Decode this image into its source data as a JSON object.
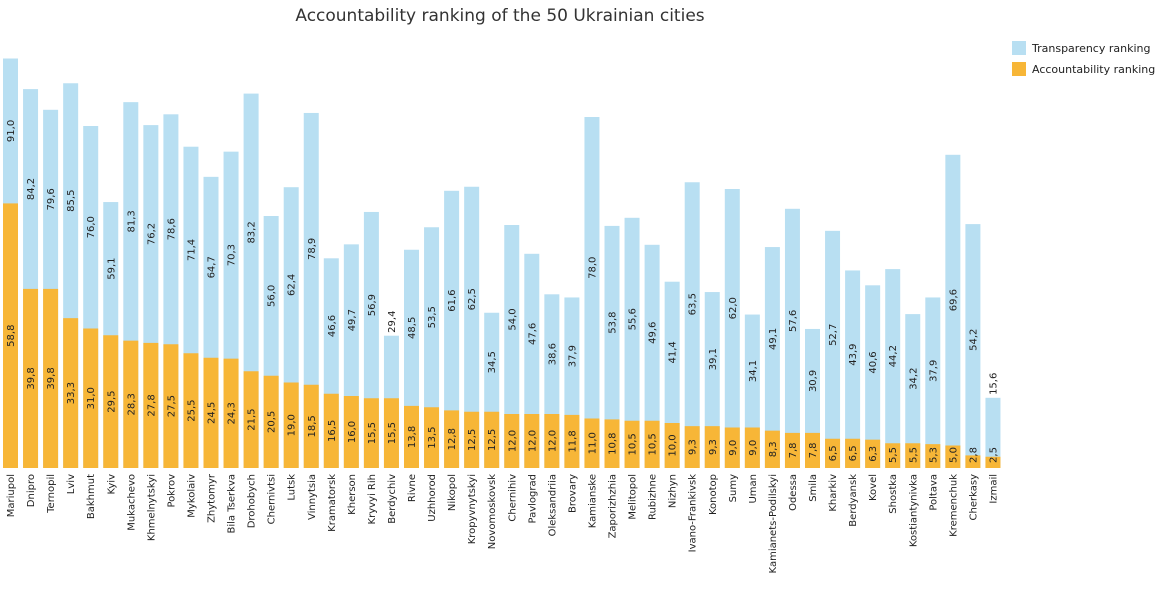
{
  "chart_data": {
    "type": "bar",
    "title": "Accountability ranking of the 50 Ukrainian cities",
    "legend_position": "top-right",
    "grid": false,
    "ylim": [
      0,
      100
    ],
    "colors": {
      "transparency": "#b8dff2",
      "accountability": "#f7b637"
    },
    "series": [
      {
        "name": "Transparency ranking",
        "key": "transparency",
        "values": [
          91.0,
          84.2,
          79.6,
          85.5,
          76.0,
          59.1,
          81.3,
          76.2,
          78.6,
          71.4,
          64.7,
          70.3,
          83.2,
          56.0,
          62.4,
          78.9,
          46.6,
          49.7,
          56.9,
          29.4,
          48.5,
          53.5,
          61.6,
          62.5,
          34.5,
          54.0,
          47.6,
          38.6,
          37.9,
          78.0,
          53.8,
          55.6,
          49.6,
          41.4,
          63.5,
          39.1,
          62.0,
          34.1,
          49.1,
          57.6,
          30.9,
          52.7,
          43.9,
          40.6,
          44.2,
          34.2,
          37.9,
          69.6,
          54.2,
          15.6
        ],
        "labels": [
          "91,0",
          "84,2",
          "79,6",
          "85,5",
          "76,0",
          "59,1",
          "81,3",
          "76,2",
          "78,6",
          "71,4",
          "64,7",
          "70,3",
          "83,2",
          "56,0",
          "62,4",
          "78,9",
          "46,6",
          "49,7",
          "56,9",
          "29,4",
          "48,5",
          "53,5",
          "61,6",
          "62,5",
          "34,5",
          "54,0",
          "47,6",
          "38,6",
          "37,9",
          "78,0",
          "53,8",
          "55,6",
          "49,6",
          "41,4",
          "63,5",
          "39,1",
          "62,0",
          "34,1",
          "49,1",
          "57,6",
          "30,9",
          "52,7",
          "43,9",
          "40,6",
          "44,2",
          "34,2",
          "37,9",
          "69,6",
          "54,2",
          "15,6"
        ]
      },
      {
        "name": "Accountability ranking",
        "key": "accountability",
        "values": [
          58.8,
          39.8,
          39.8,
          33.3,
          31.0,
          29.5,
          28.3,
          27.8,
          27.5,
          25.5,
          24.5,
          24.3,
          21.5,
          20.5,
          19.0,
          18.5,
          16.5,
          16.0,
          15.5,
          15.5,
          13.8,
          13.5,
          12.8,
          12.5,
          12.5,
          12.0,
          12.0,
          12.0,
          11.8,
          11.0,
          10.8,
          10.5,
          10.5,
          10.0,
          9.3,
          9.3,
          9.0,
          9.0,
          8.3,
          7.8,
          7.8,
          6.5,
          6.5,
          6.3,
          5.5,
          5.5,
          5.3,
          5.0,
          2.8,
          2.5
        ],
        "labels": [
          "58,8",
          "39,8",
          "39,8",
          "33,3",
          "31,0",
          "29,5",
          "28,3",
          "27,8",
          "27,5",
          "25,5",
          "24,5",
          "24,3",
          "21,5",
          "20,5",
          "19,0",
          "18,5",
          "16,5",
          "16,0",
          "15,5",
          "15,5",
          "13,8",
          "13,5",
          "12,8",
          "12,5",
          "12,5",
          "12,0",
          "12,0",
          "12,0",
          "11,8",
          "11,0",
          "10,8",
          "10,5",
          "10,5",
          "10,0",
          "9,3",
          "9,3",
          "9,0",
          "9,0",
          "8,3",
          "7,8",
          "7,8",
          "6,5",
          "6,5",
          "6,3",
          "5,5",
          "5,5",
          "5,3",
          "5,0",
          "2,8",
          "2,5"
        ]
      }
    ],
    "categories": [
      "Mariupol",
      "Dnipro",
      "Ternopil",
      "Lviv",
      "Bakhmut",
      "Kyiv",
      "Mukachevo",
      "Khmelnytskyi",
      "Pokrov",
      "Mykolaiv",
      "Zhytomyr",
      "Bila Tserkva",
      "Drohobych",
      "Chernivtsi",
      "Lutsk",
      "Vinnytsia",
      "Kramatorsk",
      "Kherson",
      "Kryvyi Rih",
      "Berdychiv",
      "Rivne",
      "Uzhhorod",
      "Nikopol",
      "Kropyvnytskyi",
      "Novomoskovsk",
      "Chernihiv",
      "Pavlograd",
      "Oleksandriia",
      "Brovary",
      "Kamianske",
      "Zaporizhzhia",
      "Melitopol",
      "Rubizhne",
      "Nizhyn",
      "Ivano-Frankivsk",
      "Konotop",
      "Sumy",
      "Uman",
      "Kamianets-Podilskyi",
      "Odessa",
      "Smila",
      "Kharkiv",
      "Berdyansk",
      "Kovel",
      "Shostka",
      "Kostiantynivka",
      "Poltava",
      "Kremenchuk",
      "Cherkasy",
      "Izmail"
    ]
  }
}
